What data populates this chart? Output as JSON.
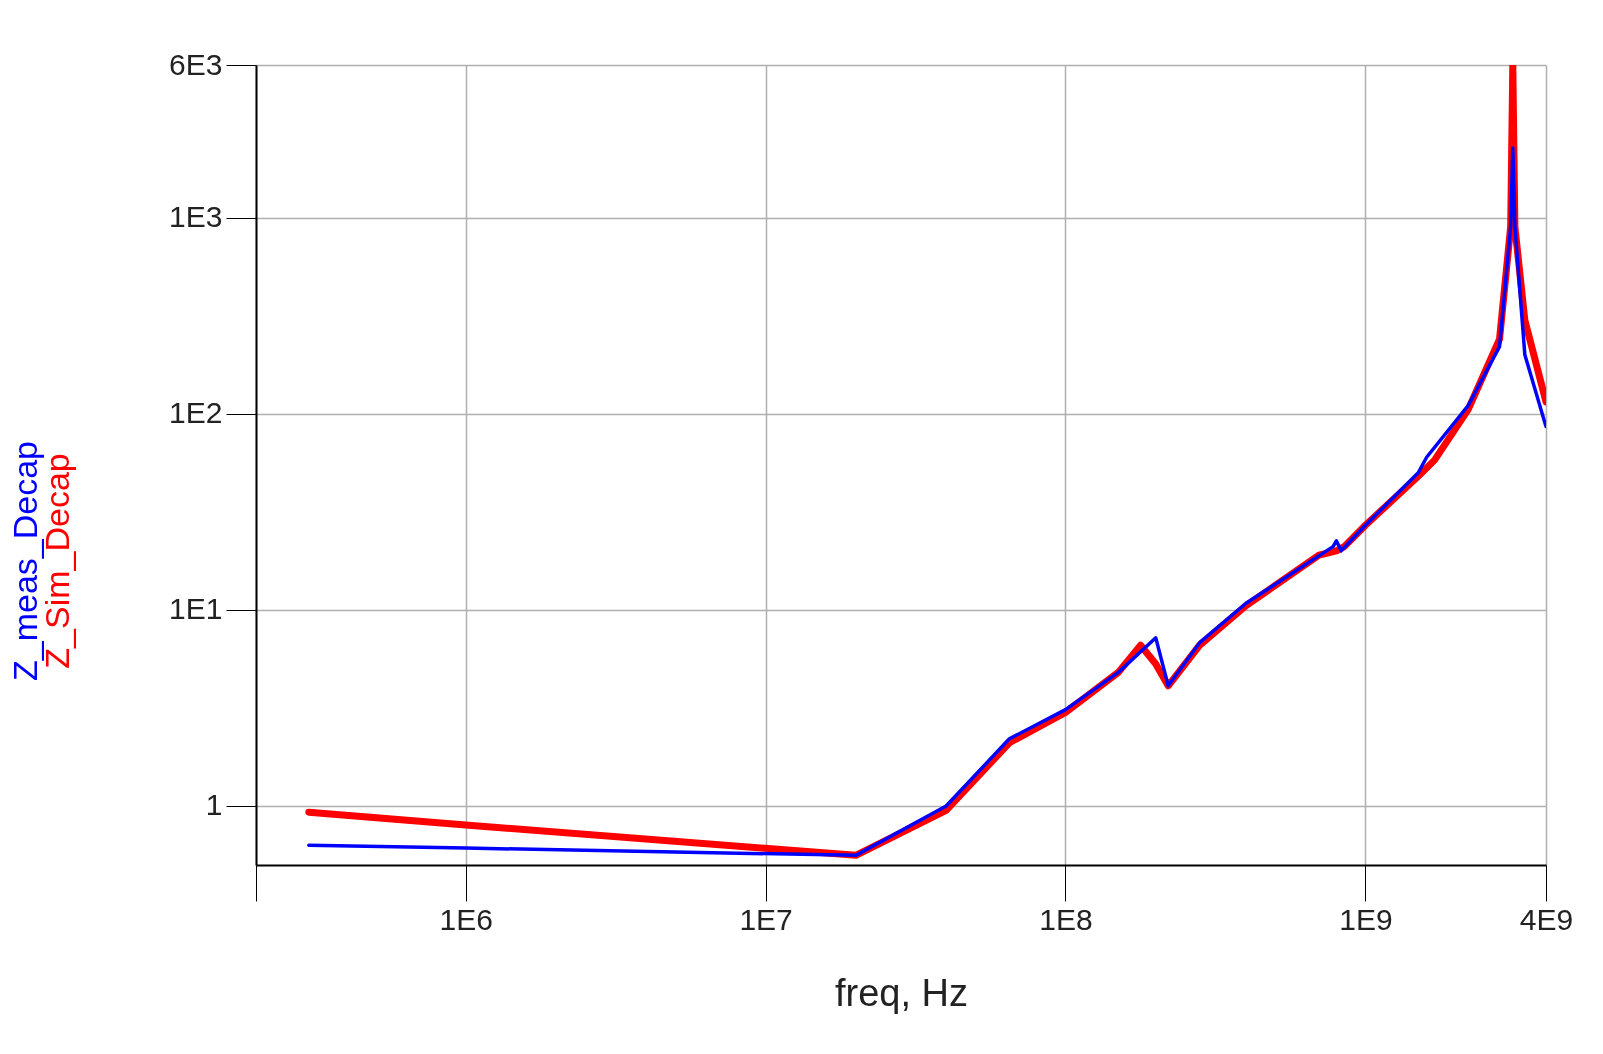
{
  "chart_data": {
    "type": "line",
    "xlabel": "freq, Hz",
    "log": "xy",
    "grid": true,
    "xlim": [
      200000,
      4000000000
    ],
    "ylim": [
      0.5,
      6000
    ],
    "xticks": [
      {
        "value": 200000,
        "label": null
      },
      {
        "value": 1000000,
        "label": "1E6"
      },
      {
        "value": 10000000,
        "label": "1E7"
      },
      {
        "value": 100000000,
        "label": "1E8"
      },
      {
        "value": 1000000000,
        "label": "1E9"
      },
      {
        "value": 4000000000,
        "label": "4E9"
      }
    ],
    "yticks": [
      1,
      {
        "value": 10,
        "label": "1E1"
      },
      {
        "value": 100,
        "label": "1E2"
      },
      {
        "value": 1000,
        "label": "1E3"
      },
      {
        "value": 6000,
        "label": "6E3"
      }
    ],
    "series": [
      {
        "name": "Z_Sim_Decap",
        "color": "#ff0000",
        "x": [
          300000,
          1000000,
          20000000,
          40000000,
          65000000,
          100000000,
          150000000,
          178000000,
          200000000,
          220000000,
          280000000,
          400000000,
          700000000,
          800000000,
          850000000,
          1000000000,
          1500000000,
          1700000000,
          2200000000,
          2800000000,
          3050000000,
          3100000000,
          3150000000,
          3400000000,
          4000000000
        ],
        "values": [
          0.93,
          0.8,
          0.56,
          0.95,
          2.1,
          3.0,
          4.8,
          6.6,
          5.3,
          4.1,
          6.6,
          10.5,
          19,
          20,
          21,
          27,
          48,
          58,
          105,
          240,
          900,
          6000,
          900,
          300,
          115
        ]
      },
      {
        "name": "Z_meas_Decap",
        "color": "#0000ff",
        "x": [
          300000,
          1000000,
          20000000,
          40000000,
          65000000,
          100000000,
          150000000,
          200000000,
          220000000,
          280000000,
          400000000,
          780000000,
          800000000,
          830000000,
          1000000000,
          1500000000,
          1600000000,
          2200000000,
          2800000000,
          3050000000,
          3100000000,
          3150000000,
          3400000000,
          4000000000
        ],
        "values": [
          0.63,
          0.61,
          0.56,
          1.0,
          2.2,
          3.1,
          4.8,
          7.2,
          4.1,
          6.8,
          10.8,
          21,
          22.5,
          20,
          27,
          50,
          60,
          110,
          220,
          900,
          2265,
          900,
          200,
          86
        ]
      }
    ]
  }
}
